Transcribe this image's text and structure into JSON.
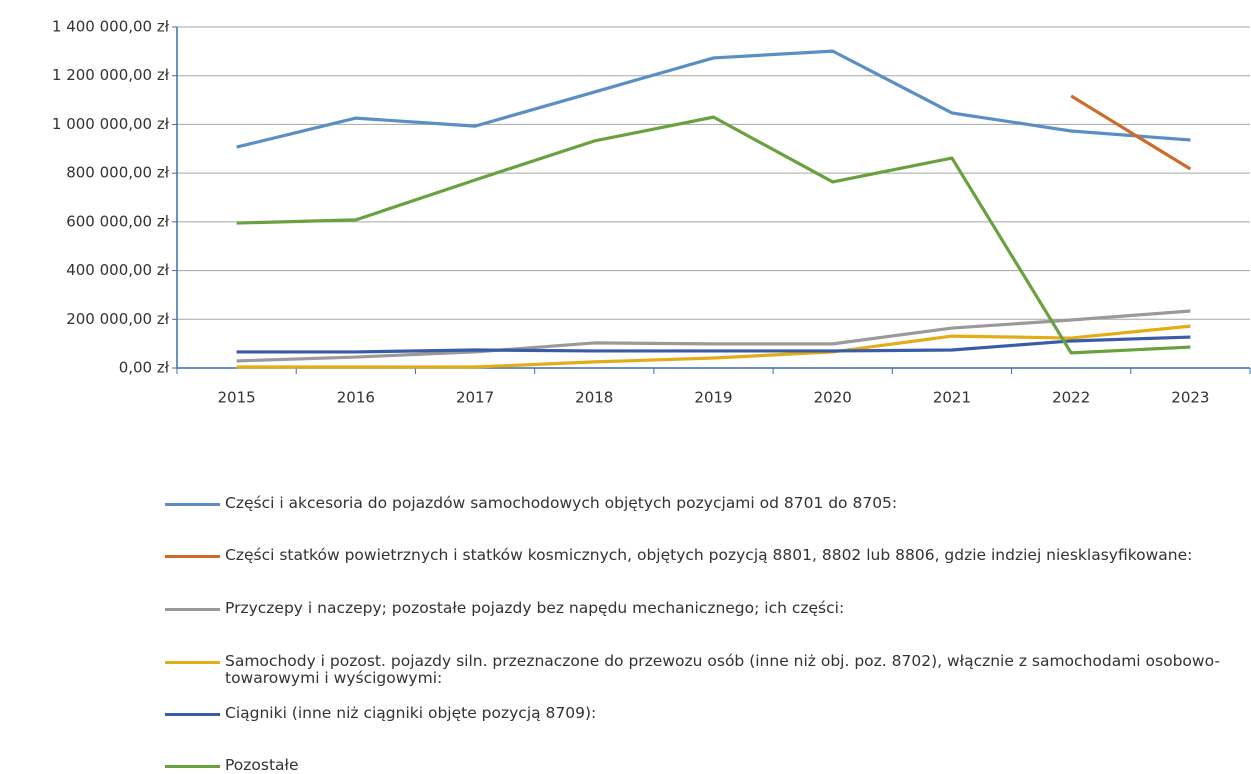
{
  "chart_data": {
    "type": "line",
    "categories": [
      "2015",
      "2016",
      "2017",
      "2018",
      "2019",
      "2020",
      "2021",
      "2022",
      "2023"
    ],
    "series": [
      {
        "name": "Części i akcesoria do pojazdów samochodowych objętych pozycjami od 8701 do 8705:",
        "color": "#5b8fc4",
        "values": [
          907000,
          1026000,
          993000,
          1133000,
          1273000,
          1301000,
          1047000,
          973000,
          936000
        ]
      },
      {
        "name": "Części statków powietrznych i statków kosmicznych, objętych pozycją 8801, 8802 lub 8806, gdzie indziej niesklasyfikowane:",
        "color": "#d0692b",
        "values": [
          null,
          null,
          null,
          null,
          null,
          null,
          null,
          1117000,
          817000
        ]
      },
      {
        "name": "Przyczepy i naczepy; pozostałe pojazdy bez napędu mechanicznego; ich części:",
        "color": "#9a9a9a",
        "values": [
          29000,
          45000,
          66000,
          103000,
          99000,
          99000,
          164000,
          197000,
          234000
        ]
      },
      {
        "name": "Samochody i pozost. pojazdy siln. przeznaczone do przewozu osób (inne niż obj. poz. 8702), włącznie z samochodami osobowo-towarowymi i wyścigowymi:",
        "color": "#e2ad16",
        "values": [
          4000,
          4000,
          4000,
          25000,
          41000,
          66000,
          131000,
          123000,
          172000
        ]
      },
      {
        "name": "Ciągniki (inne niż ciągniki objęte pozycją 8709):",
        "color": "#3a5ca8",
        "values": [
          66000,
          66000,
          74000,
          70000,
          70000,
          70000,
          74000,
          111000,
          127000
        ]
      },
      {
        "name": "Pozostałe",
        "color": "#6aa13f",
        "values": [
          595000,
          608000,
          772000,
          932000,
          1030000,
          764000,
          862000,
          62000,
          86000
        ]
      }
    ],
    "ylim": [
      0,
      1400000
    ],
    "yticks": [
      {
        "value": 0,
        "label": "0,00 zł"
      },
      {
        "value": 200000,
        "label": "200 000,00 zł"
      },
      {
        "value": 400000,
        "label": "400 000,00 zł"
      },
      {
        "value": 600000,
        "label": "600 000,00 zł"
      },
      {
        "value": 800000,
        "label": "800 000,00 zł"
      },
      {
        "value": 1000000,
        "label": "1 000 000,00 zł"
      },
      {
        "value": 1200000,
        "label": "1 200 000,00 zł"
      },
      {
        "value": 1400000,
        "label": "1 400 000,00 zł"
      }
    ],
    "grid": true
  }
}
